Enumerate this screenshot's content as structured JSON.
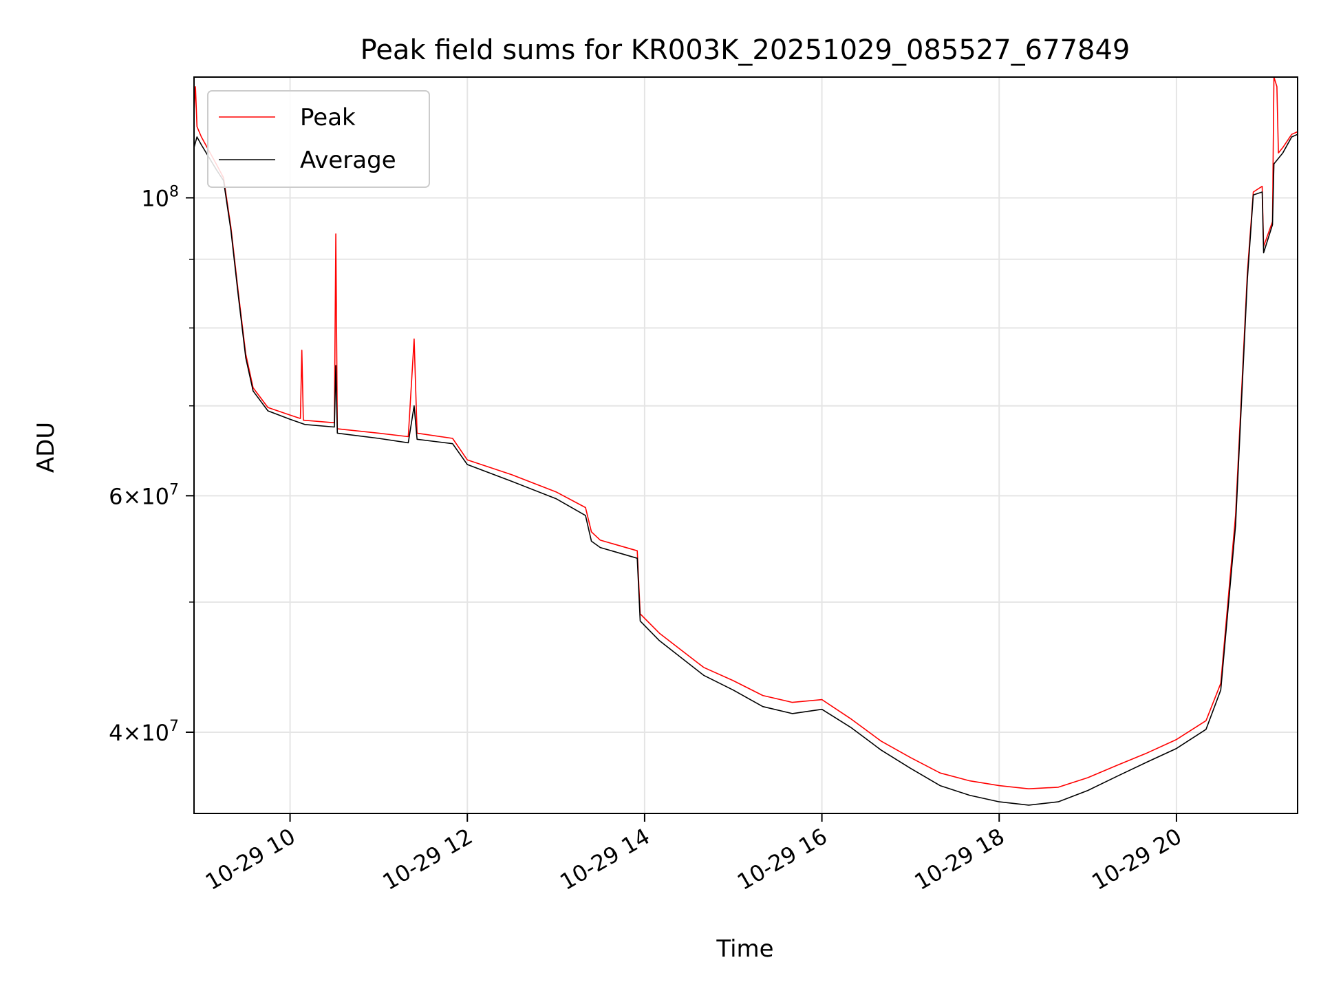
{
  "chart_data": {
    "type": "line",
    "title": "Peak field sums for KR003K_20251029_085527_677849",
    "xlabel": "Time",
    "ylabel": "ADU",
    "yscale": "log",
    "grid": true,
    "legend_position": "top-left",
    "xlim": [
      "10-29 08:55",
      "10-29 21:22"
    ],
    "ylim": [
      34800000,
      123000000
    ],
    "x_ticks": [
      {
        "value": "10-29 10:00",
        "label": "10-29 10"
      },
      {
        "value": "10-29 12:00",
        "label": "10-29 12"
      },
      {
        "value": "10-29 14:00",
        "label": "10-29 14"
      },
      {
        "value": "10-29 16:00",
        "label": "10-29 16"
      },
      {
        "value": "10-29 18:00",
        "label": "10-29 18"
      },
      {
        "value": "10-29 20:00",
        "label": "10-29 20"
      }
    ],
    "y_major_ticks": [
      {
        "value": 40000000,
        "label_base": "4",
        "label_exp": "7"
      },
      {
        "value": 60000000,
        "label_base": "6",
        "label_exp": "7"
      },
      {
        "value": 100000000,
        "label_base": "10",
        "label_exp": "8"
      }
    ],
    "y_minor_gridlines": [
      50000000,
      70000000,
      80000000,
      90000000
    ],
    "series": [
      {
        "name": "Peak",
        "color": "#ff0000",
        "points": [
          [
            "10-29 08:55",
            116000000
          ],
          [
            "10-29 08:56",
            121000000
          ],
          [
            "10-29 08:57",
            113000000
          ],
          [
            "10-29 09:00",
            111000000
          ],
          [
            "10-29 09:10",
            106000000
          ],
          [
            "10-29 09:15",
            103500000
          ],
          [
            "10-29 09:20",
            95000000
          ],
          [
            "10-29 09:25",
            85000000
          ],
          [
            "10-29 09:30",
            76500000
          ],
          [
            "10-29 09:35",
            72200000
          ],
          [
            "10-29 09:45",
            69800000
          ],
          [
            "10-29 10:00",
            68900000
          ],
          [
            "10-29 10:07",
            68500000
          ],
          [
            "10-29 10:08",
            77000000
          ],
          [
            "10-29 10:09",
            68300000
          ],
          [
            "10-29 10:30",
            68000000
          ],
          [
            "10-29 10:31",
            94000000
          ],
          [
            "10-29 10:32",
            67300000
          ],
          [
            "10-29 11:00",
            66800000
          ],
          [
            "10-29 11:20",
            66400000
          ],
          [
            "10-29 11:24",
            78500000
          ],
          [
            "10-29 11:26",
            66800000
          ],
          [
            "10-29 11:50",
            66200000
          ],
          [
            "10-29 12:00",
            63800000
          ],
          [
            "10-29 12:30",
            62200000
          ],
          [
            "10-29 13:00",
            60400000
          ],
          [
            "10-29 13:20",
            58800000
          ],
          [
            "10-29 13:24",
            56400000
          ],
          [
            "10-29 13:30",
            55600000
          ],
          [
            "10-29 13:55",
            54600000
          ],
          [
            "10-29 13:57",
            49000000
          ],
          [
            "10-29 14:10",
            47400000
          ],
          [
            "10-29 14:40",
            44700000
          ],
          [
            "10-29 15:00",
            43700000
          ],
          [
            "10-29 15:20",
            42600000
          ],
          [
            "10-29 15:40",
            42100000
          ],
          [
            "10-29 16:00",
            42300000
          ],
          [
            "10-29 16:20",
            40900000
          ],
          [
            "10-29 16:40",
            39400000
          ],
          [
            "10-29 17:00",
            38300000
          ],
          [
            "10-29 17:20",
            37300000
          ],
          [
            "10-29 17:40",
            36800000
          ],
          [
            "10-29 18:00",
            36500000
          ],
          [
            "10-29 18:20",
            36300000
          ],
          [
            "10-29 18:40",
            36400000
          ],
          [
            "10-29 19:00",
            37000000
          ],
          [
            "10-29 19:20",
            37800000
          ],
          [
            "10-29 19:40",
            38600000
          ],
          [
            "10-29 20:00",
            39500000
          ],
          [
            "10-29 20:20",
            40800000
          ],
          [
            "10-29 20:30",
            43500000
          ],
          [
            "10-29 20:40",
            58000000
          ],
          [
            "10-29 20:48",
            88000000
          ],
          [
            "10-29 20:52",
            101000000
          ],
          [
            "10-29 20:58",
            102000000
          ],
          [
            "10-29 20:59",
            92000000
          ],
          [
            "10-29 21:05",
            96000000
          ],
          [
            "10-29 21:06",
            123000000
          ],
          [
            "10-29 21:08",
            121000000
          ],
          [
            "10-29 21:09",
            108000000
          ],
          [
            "10-29 21:12",
            109000000
          ],
          [
            "10-29 21:18",
            111500000
          ],
          [
            "10-29 21:22",
            112000000
          ]
        ]
      },
      {
        "name": "Average",
        "color": "#000000",
        "points": [
          [
            "10-29 08:55",
            109000000
          ],
          [
            "10-29 08:57",
            111000000
          ],
          [
            "10-29 09:00",
            109500000
          ],
          [
            "10-29 09:10",
            105000000
          ],
          [
            "10-29 09:15",
            103000000
          ],
          [
            "10-29 09:20",
            94500000
          ],
          [
            "10-29 09:25",
            84500000
          ],
          [
            "10-29 09:30",
            76000000
          ],
          [
            "10-29 09:35",
            71800000
          ],
          [
            "10-29 09:45",
            69400000
          ],
          [
            "10-29 10:00",
            68400000
          ],
          [
            "10-29 10:10",
            67800000
          ],
          [
            "10-29 10:30",
            67500000
          ],
          [
            "10-29 10:31",
            75000000
          ],
          [
            "10-29 10:32",
            66800000
          ],
          [
            "10-29 11:00",
            66200000
          ],
          [
            "10-29 11:20",
            65700000
          ],
          [
            "10-29 11:24",
            70000000
          ],
          [
            "10-29 11:26",
            66100000
          ],
          [
            "10-29 11:50",
            65600000
          ],
          [
            "10-29 12:00",
            63300000
          ],
          [
            "10-29 12:30",
            61500000
          ],
          [
            "10-29 13:00",
            59700000
          ],
          [
            "10-29 13:20",
            58000000
          ],
          [
            "10-29 13:24",
            55500000
          ],
          [
            "10-29 13:30",
            54900000
          ],
          [
            "10-29 13:55",
            53900000
          ],
          [
            "10-29 13:57",
            48400000
          ],
          [
            "10-29 14:10",
            46800000
          ],
          [
            "10-29 14:40",
            44100000
          ],
          [
            "10-29 15:00",
            43000000
          ],
          [
            "10-29 15:20",
            41800000
          ],
          [
            "10-29 15:40",
            41300000
          ],
          [
            "10-29 16:00",
            41600000
          ],
          [
            "10-29 16:20",
            40300000
          ],
          [
            "10-29 16:40",
            38800000
          ],
          [
            "10-29 17:00",
            37600000
          ],
          [
            "10-29 17:20",
            36500000
          ],
          [
            "10-29 17:40",
            35900000
          ],
          [
            "10-29 18:00",
            35500000
          ],
          [
            "10-29 18:20",
            35300000
          ],
          [
            "10-29 18:40",
            35500000
          ],
          [
            "10-29 19:00",
            36200000
          ],
          [
            "10-29 19:20",
            37100000
          ],
          [
            "10-29 19:40",
            38000000
          ],
          [
            "10-29 20:00",
            38900000
          ],
          [
            "10-29 20:20",
            40200000
          ],
          [
            "10-29 20:30",
            43000000
          ],
          [
            "10-29 20:40",
            57000000
          ],
          [
            "10-29 20:48",
            87000000
          ],
          [
            "10-29 20:52",
            100500000
          ],
          [
            "10-29 20:58",
            101000000
          ],
          [
            "10-29 20:59",
            91000000
          ],
          [
            "10-29 21:05",
            95500000
          ],
          [
            "10-29 21:06",
            106000000
          ],
          [
            "10-29 21:09",
            107000000
          ],
          [
            "10-29 21:12",
            108000000
          ],
          [
            "10-29 21:18",
            111000000
          ],
          [
            "10-29 21:22",
            111500000
          ]
        ]
      }
    ]
  }
}
